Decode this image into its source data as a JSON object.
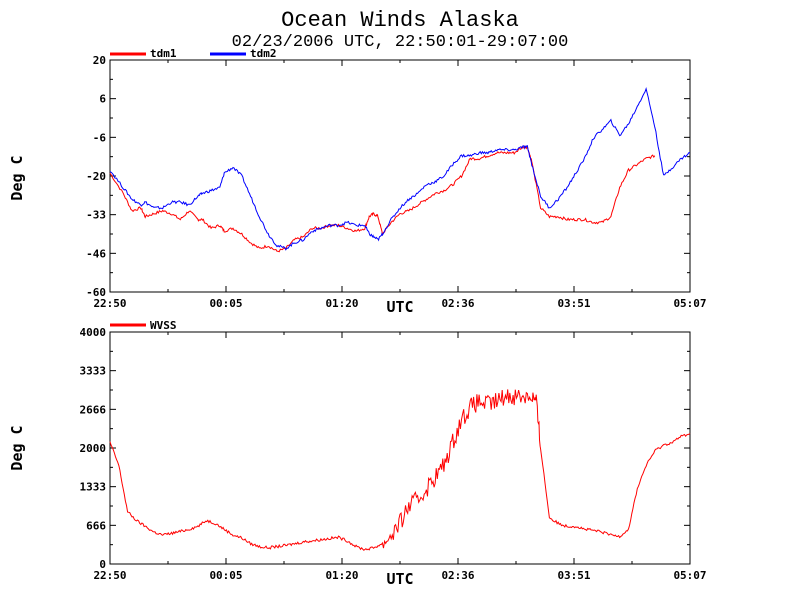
{
  "title": "Ocean Winds Alaska",
  "subtitle": "02/23/2006  UTC, 22:50:01-29:07:00",
  "chart_data": [
    {
      "type": "line",
      "ylabel": "Deg C",
      "xlabel": "UTC",
      "x_tick_labels": [
        "22:50",
        "00:05",
        "01:20",
        "02:36",
        "03:51",
        "05:07"
      ],
      "y_tick_labels": [
        "20",
        "6",
        "-6",
        "-20",
        "-33",
        "-46",
        "-60"
      ],
      "ylim": [
        -60,
        20
      ],
      "series": [
        {
          "name": "tdm1",
          "color": "#ff0000",
          "points": [
            [
              0,
              -19
            ],
            [
              0.03,
              -26
            ],
            [
              0.05,
              -32
            ],
            [
              0.07,
              -31
            ],
            [
              0.08,
              -34
            ],
            [
              0.1,
              -33
            ],
            [
              0.12,
              -32
            ],
            [
              0.14,
              -33
            ],
            [
              0.16,
              -35
            ],
            [
              0.18,
              -32
            ],
            [
              0.2,
              -35
            ],
            [
              0.21,
              -35
            ],
            [
              0.23,
              -38
            ],
            [
              0.25,
              -37
            ],
            [
              0.26,
              -39
            ],
            [
              0.28,
              -38
            ],
            [
              0.3,
              -40
            ],
            [
              0.32,
              -43
            ],
            [
              0.34,
              -45
            ],
            [
              0.36,
              -44
            ],
            [
              0.38,
              -46
            ],
            [
              0.4,
              -45
            ],
            [
              0.42,
              -42
            ],
            [
              0.44,
              -41
            ],
            [
              0.46,
              -38
            ],
            [
              0.48,
              -38
            ],
            [
              0.5,
              -37
            ],
            [
              0.52,
              -37
            ],
            [
              0.54,
              -38
            ],
            [
              0.56,
              -39
            ],
            [
              0.58,
              -38
            ],
            [
              0.59,
              -34
            ],
            [
              0.6,
              -33
            ],
            [
              0.61,
              -34
            ],
            [
              0.62,
              -40
            ],
            [
              0.64,
              -36
            ],
            [
              0.66,
              -33
            ],
            [
              0.68,
              -32
            ],
            [
              0.7,
              -30
            ],
            [
              0.72,
              -28
            ],
            [
              0.74,
              -26
            ],
            [
              0.76,
              -25
            ],
            [
              0.78,
              -23
            ],
            [
              0.8,
              -20
            ],
            [
              0.82,
              -14
            ],
            [
              0.84,
              -14
            ],
            [
              0.86,
              -13
            ],
            [
              0.88,
              -12
            ],
            [
              0.9,
              -12
            ],
            [
              0.92,
              -12
            ],
            [
              0.94,
              -10
            ],
            [
              0.95,
              -10
            ],
            [
              0.96,
              -15
            ],
            [
              0.98,
              -31
            ],
            [
              1.0,
              -34
            ],
            [
              1.02,
              -34
            ],
            [
              1.04,
              -35
            ],
            [
              1.06,
              -35
            ],
            [
              1.08,
              -35
            ],
            [
              1.1,
              -36
            ],
            [
              1.12,
              -36
            ],
            [
              1.14,
              -34
            ],
            [
              1.16,
              -24
            ],
            [
              1.18,
              -18
            ],
            [
              1.2,
              -16
            ],
            [
              1.22,
              -14
            ],
            [
              1.24,
              -13
            ]
          ]
        },
        {
          "name": "tdm2",
          "color": "#0000ff",
          "points": [
            [
              0,
              -18
            ],
            [
              0.03,
              -24
            ],
            [
              0.05,
              -28
            ],
            [
              0.07,
              -30
            ],
            [
              0.08,
              -29
            ],
            [
              0.1,
              -31
            ],
            [
              0.12,
              -31
            ],
            [
              0.14,
              -29
            ],
            [
              0.16,
              -29
            ],
            [
              0.18,
              -30
            ],
            [
              0.2,
              -27
            ],
            [
              0.21,
              -26
            ],
            [
              0.23,
              -25
            ],
            [
              0.25,
              -24
            ],
            [
              0.26,
              -19
            ],
            [
              0.28,
              -17
            ],
            [
              0.3,
              -20
            ],
            [
              0.32,
              -27
            ],
            [
              0.34,
              -34
            ],
            [
              0.36,
              -40
            ],
            [
              0.38,
              -44
            ],
            [
              0.4,
              -45
            ],
            [
              0.42,
              -43
            ],
            [
              0.44,
              -42
            ],
            [
              0.46,
              -39
            ],
            [
              0.48,
              -38
            ],
            [
              0.5,
              -37
            ],
            [
              0.52,
              -37
            ],
            [
              0.54,
              -36
            ],
            [
              0.56,
              -37
            ],
            [
              0.58,
              -37
            ],
            [
              0.59,
              -40
            ],
            [
              0.6,
              -41
            ],
            [
              0.61,
              -42
            ],
            [
              0.62,
              -40
            ],
            [
              0.64,
              -35
            ],
            [
              0.66,
              -31
            ],
            [
              0.68,
              -28
            ],
            [
              0.7,
              -26
            ],
            [
              0.72,
              -23
            ],
            [
              0.74,
              -22
            ],
            [
              0.76,
              -20
            ],
            [
              0.78,
              -16
            ],
            [
              0.8,
              -13
            ],
            [
              0.82,
              -13
            ],
            [
              0.84,
              -12
            ],
            [
              0.86,
              -12
            ],
            [
              0.88,
              -11
            ],
            [
              0.9,
              -11
            ],
            [
              0.92,
              -11
            ],
            [
              0.94,
              -10
            ],
            [
              0.95,
              -10
            ],
            [
              0.96,
              -16
            ],
            [
              0.98,
              -27
            ],
            [
              1.0,
              -31
            ],
            [
              1.02,
              -28
            ],
            [
              1.04,
              -24
            ],
            [
              1.06,
              -19
            ],
            [
              1.08,
              -14
            ],
            [
              1.1,
              -7
            ],
            [
              1.12,
              -4
            ],
            [
              1.14,
              -1
            ],
            [
              1.16,
              -6
            ],
            [
              1.18,
              -2
            ],
            [
              1.2,
              4
            ],
            [
              1.22,
              10
            ],
            [
              1.24,
              -3
            ],
            [
              1.26,
              -20
            ],
            [
              1.28,
              -17
            ],
            [
              1.3,
              -14
            ],
            [
              1.32,
              -12
            ]
          ]
        }
      ]
    },
    {
      "type": "line",
      "ylabel": "Deg C",
      "xlabel": "UTC",
      "x_tick_labels": [
        "22:50",
        "00:05",
        "01:20",
        "02:36",
        "03:51",
        "05:07"
      ],
      "y_tick_labels": [
        "4000",
        "3333",
        "2666",
        "2000",
        "1333",
        "666",
        "0"
      ],
      "ylim": [
        0,
        4000
      ],
      "series": [
        {
          "name": "WVSS",
          "color": "#ff0000",
          "points": [
            [
              0,
              2100
            ],
            [
              0.02,
              1700
            ],
            [
              0.04,
              900
            ],
            [
              0.06,
              750
            ],
            [
              0.08,
              650
            ],
            [
              0.1,
              550
            ],
            [
              0.12,
              500
            ],
            [
              0.14,
              530
            ],
            [
              0.16,
              560
            ],
            [
              0.18,
              600
            ],
            [
              0.2,
              650
            ],
            [
              0.22,
              750
            ],
            [
              0.24,
              700
            ],
            [
              0.26,
              600
            ],
            [
              0.28,
              500
            ],
            [
              0.3,
              450
            ],
            [
              0.32,
              350
            ],
            [
              0.34,
              300
            ],
            [
              0.36,
              280
            ],
            [
              0.38,
              300
            ],
            [
              0.4,
              320
            ],
            [
              0.42,
              350
            ],
            [
              0.44,
              380
            ],
            [
              0.46,
              400
            ],
            [
              0.48,
              420
            ],
            [
              0.5,
              440
            ],
            [
              0.52,
              460
            ],
            [
              0.54,
              400
            ],
            [
              0.56,
              300
            ],
            [
              0.58,
              250
            ],
            [
              0.6,
              280
            ],
            [
              0.62,
              350
            ],
            [
              0.64,
              500
            ],
            [
              0.66,
              700
            ],
            [
              0.68,
              1000
            ],
            [
              0.7,
              1100
            ],
            [
              0.72,
              1300
            ],
            [
              0.74,
              1500
            ],
            [
              0.76,
              1700
            ],
            [
              0.78,
              2100
            ],
            [
              0.8,
              2500
            ],
            [
              0.82,
              2700
            ],
            [
              0.84,
              2800
            ],
            [
              0.86,
              2750
            ],
            [
              0.88,
              2800
            ],
            [
              0.9,
              2900
            ],
            [
              0.92,
              2900
            ],
            [
              0.94,
              2900
            ],
            [
              0.96,
              2900
            ],
            [
              0.97,
              2800
            ],
            [
              0.98,
              2000
            ],
            [
              1.0,
              800
            ],
            [
              1.02,
              700
            ],
            [
              1.04,
              650
            ],
            [
              1.06,
              650
            ],
            [
              1.08,
              600
            ],
            [
              1.1,
              580
            ],
            [
              1.12,
              550
            ],
            [
              1.14,
              500
            ],
            [
              1.16,
              480
            ],
            [
              1.18,
              600
            ],
            [
              1.2,
              1300
            ],
            [
              1.22,
              1700
            ],
            [
              1.24,
              1950
            ],
            [
              1.26,
              2050
            ],
            [
              1.28,
              2100
            ],
            [
              1.3,
              2200
            ],
            [
              1.32,
              2250
            ]
          ]
        }
      ]
    }
  ]
}
